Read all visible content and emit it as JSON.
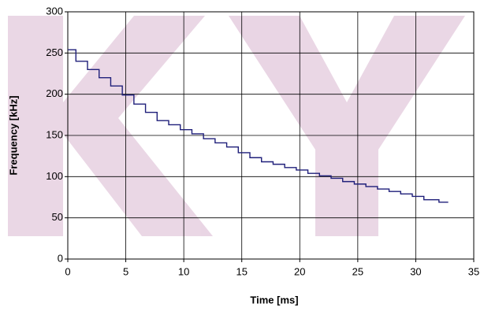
{
  "chart_data": {
    "type": "step",
    "x_label": "Time [ms]",
    "y_label": "Frequency [kHz]",
    "x": [
      0,
      0.7,
      1.7,
      2.7,
      3.7,
      4.7,
      5.7,
      6.7,
      7.7,
      8.7,
      9.7,
      10.7,
      11.7,
      12.7,
      13.7,
      14.7,
      15.7,
      16.7,
      17.7,
      18.7,
      19.7,
      20.7,
      21.7,
      22.7,
      23.7,
      24.7,
      25.7,
      26.7,
      27.7,
      28.7,
      29.7,
      30.7,
      32.0,
      32.8
    ],
    "series": [
      {
        "color": "#1f1f7a",
        "values": [
          254,
          240,
          230,
          220,
          210,
          199,
          188,
          178,
          168,
          163,
          157,
          152,
          146,
          141,
          136,
          129,
          123,
          118,
          115,
          111,
          108,
          104,
          101,
          98,
          94,
          91,
          88,
          85,
          82,
          79,
          76,
          72,
          69,
          69
        ]
      }
    ],
    "xlim": [
      0,
      35
    ],
    "xticks": [
      0,
      5,
      10,
      15,
      20,
      25,
      30,
      35
    ],
    "ylim": [
      0,
      300
    ],
    "yticks": [
      0,
      50,
      100,
      150,
      200,
      250,
      300
    ],
    "grid": true
  }
}
